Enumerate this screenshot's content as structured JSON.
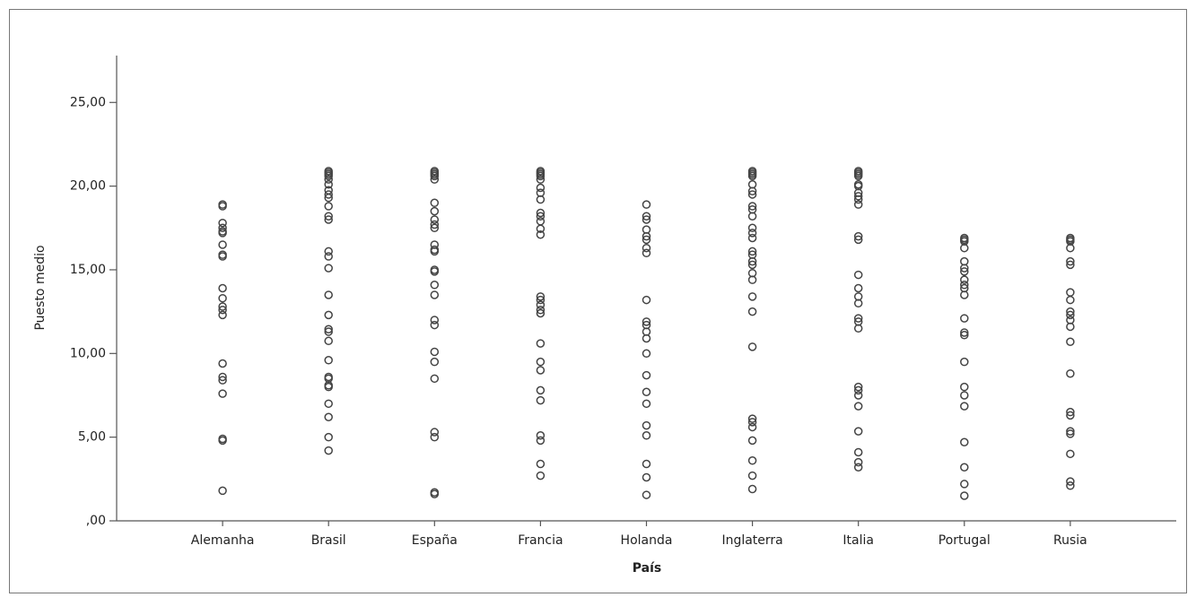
{
  "chart_data": {
    "type": "scatter",
    "x_label": "País",
    "y_label": "Puesto medio",
    "color": "#444444",
    "categories": [
      "Alemanha",
      "Brasil",
      "España",
      "Francia",
      "Holanda",
      "Inglaterra",
      "Italia",
      "Portugal",
      "Rusia"
    ],
    "ylim": [
      0,
      27.8
    ],
    "yticks": [
      {
        "value": 0,
        "label": ",00"
      },
      {
        "value": 5,
        "label": "5,00"
      },
      {
        "value": 10,
        "label": "10,00"
      },
      {
        "value": 15,
        "label": "15,00"
      },
      {
        "value": 20,
        "label": "20,00"
      },
      {
        "value": 25,
        "label": "25,00"
      }
    ],
    "values": [
      [
        18.9,
        18.8,
        17.8,
        17.5,
        17.3,
        17.2,
        16.5,
        15.9,
        15.8,
        13.9,
        13.3,
        12.8,
        12.6,
        12.3,
        9.4,
        8.6,
        8.4,
        7.6,
        4.9,
        4.8,
        1.8
      ],
      [
        20.9,
        20.8,
        20.7,
        20.6,
        20.4,
        20.1,
        19.75,
        19.5,
        19.3,
        18.8,
        18.2,
        18.0,
        16.1,
        15.8,
        15.1,
        13.5,
        12.3,
        11.45,
        11.3,
        10.75,
        9.6,
        8.6,
        8.5,
        8.1,
        8.0,
        7.0,
        6.2,
        5.0,
        4.2
      ],
      [
        20.9,
        20.8,
        20.7,
        20.6,
        20.4,
        19.0,
        18.5,
        18.0,
        17.7,
        17.5,
        16.5,
        16.2,
        16.1,
        15.0,
        14.9,
        14.1,
        13.5,
        12.0,
        11.7,
        10.1,
        9.5,
        8.5,
        5.3,
        5.0,
        1.7,
        1.6
      ],
      [
        20.9,
        20.8,
        20.7,
        20.6,
        20.4,
        19.9,
        19.6,
        19.2,
        18.4,
        18.2,
        17.9,
        17.45,
        17.1,
        13.4,
        13.2,
        12.9,
        12.6,
        12.4,
        10.6,
        9.5,
        9.0,
        7.8,
        7.2,
        5.1,
        4.8,
        3.4,
        2.7
      ],
      [
        18.9,
        18.2,
        18.0,
        17.4,
        17.0,
        16.8,
        16.3,
        16.0,
        13.2,
        11.9,
        11.7,
        11.3,
        10.9,
        10.0,
        8.7,
        7.7,
        7.0,
        5.7,
        5.1,
        3.4,
        2.6,
        1.55
      ],
      [
        20.9,
        20.8,
        20.7,
        20.6,
        20.1,
        19.7,
        19.5,
        18.8,
        18.6,
        18.2,
        17.5,
        17.2,
        16.9,
        16.1,
        15.9,
        15.5,
        15.3,
        14.8,
        14.4,
        13.4,
        12.5,
        10.4,
        6.1,
        5.9,
        5.6,
        4.8,
        3.6,
        2.7,
        1.9
      ],
      [
        20.9,
        20.8,
        20.7,
        20.6,
        20.1,
        20.0,
        19.6,
        19.4,
        19.2,
        18.9,
        17.0,
        16.8,
        14.7,
        13.9,
        13.4,
        13.0,
        12.1,
        11.9,
        11.5,
        8.0,
        7.8,
        7.5,
        6.85,
        5.35,
        4.1,
        3.5,
        3.2
      ],
      [
        16.9,
        16.8,
        16.7,
        16.3,
        15.5,
        15.1,
        14.9,
        14.4,
        14.1,
        13.9,
        13.5,
        12.1,
        11.25,
        11.1,
        9.5,
        8.0,
        7.5,
        6.85,
        4.7,
        3.2,
        2.2,
        1.5
      ],
      [
        16.9,
        16.8,
        16.7,
        16.3,
        15.5,
        15.3,
        13.65,
        13.2,
        12.5,
        12.3,
        12.0,
        11.6,
        10.7,
        8.8,
        6.5,
        6.3,
        5.35,
        5.2,
        4.0,
        2.35,
        2.1
      ]
    ]
  }
}
